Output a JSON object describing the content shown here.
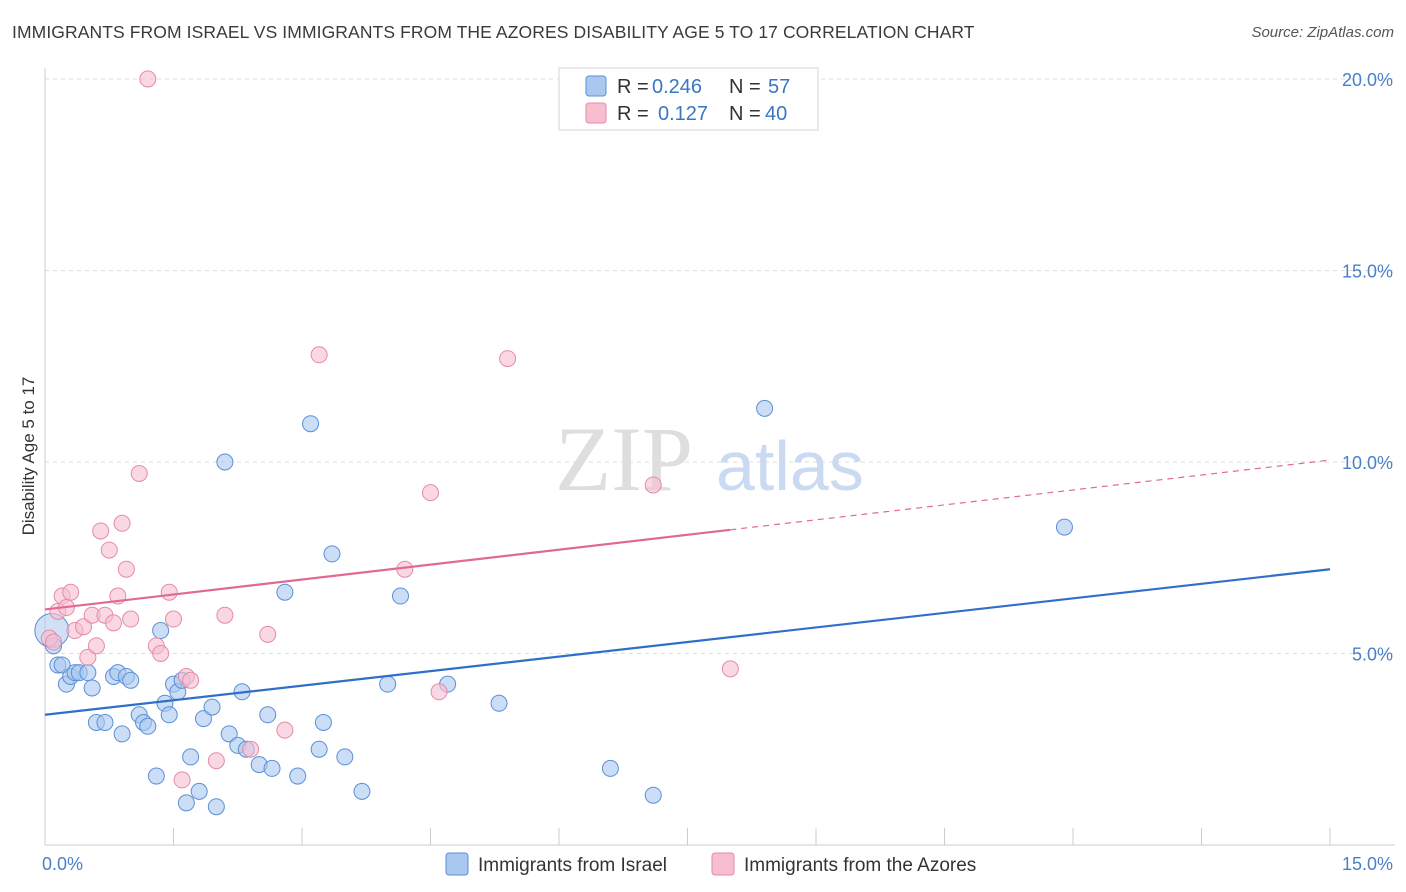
{
  "title": "IMMIGRANTS FROM ISRAEL VS IMMIGRANTS FROM THE AZORES DISABILITY AGE 5 TO 17 CORRELATION CHART",
  "source": "Source: ZipAtlas.com",
  "watermark": {
    "zip": "ZIP",
    "atlas": "atlas"
  },
  "legend": {
    "r_label": "R =",
    "n_label": "N =",
    "rows": [
      {
        "r": "0.246",
        "n": "57"
      },
      {
        "r": "0.127",
        "n": "40"
      }
    ]
  },
  "colors": {
    "israel_fill": "#a9c8f0",
    "israel_stroke": "#5b8fd6",
    "israel_line": "#2f6fc9",
    "azores_fill": "#f7bed0",
    "azores_stroke": "#e58aa8",
    "azores_line": "#e06a93"
  },
  "chart_data": {
    "type": "scatter",
    "title": "IMMIGRANTS FROM ISRAEL VS IMMIGRANTS FROM THE AZORES DISABILITY AGE 5 TO 17 CORRELATION CHART",
    "xlabel": "",
    "ylabel": "Disability Age 5 to 17",
    "xlim": [
      0,
      15
    ],
    "ylim": [
      0,
      20
    ],
    "x_tick_labels": [
      "0.0%",
      "15.0%"
    ],
    "y_ticks": [
      5,
      10,
      15,
      20
    ],
    "y_tick_labels": [
      "5.0%",
      "10.0%",
      "15.0%",
      "20.0%"
    ],
    "grid": true,
    "series": [
      {
        "name": "Immigrants from Israel",
        "r": 0.246,
        "n": 57,
        "trend": {
          "x0": 0,
          "y0": 3.4,
          "x1": 15,
          "y1": 7.2,
          "dashed_from": null
        },
        "points": [
          [
            0.08,
            5.6
          ],
          [
            0.1,
            5.2
          ],
          [
            0.15,
            4.7
          ],
          [
            0.2,
            4.7
          ],
          [
            0.25,
            4.2
          ],
          [
            0.3,
            4.4
          ],
          [
            0.35,
            4.5
          ],
          [
            0.4,
            4.5
          ],
          [
            0.5,
            4.5
          ],
          [
            0.55,
            4.1
          ],
          [
            0.6,
            3.2
          ],
          [
            0.7,
            3.2
          ],
          [
            0.8,
            4.4
          ],
          [
            0.85,
            4.5
          ],
          [
            0.9,
            2.9
          ],
          [
            0.95,
            4.4
          ],
          [
            1.0,
            4.3
          ],
          [
            1.1,
            3.4
          ],
          [
            1.15,
            3.2
          ],
          [
            1.2,
            3.1
          ],
          [
            1.3,
            1.8
          ],
          [
            1.35,
            5.6
          ],
          [
            1.4,
            3.7
          ],
          [
            1.45,
            3.4
          ],
          [
            1.5,
            4.2
          ],
          [
            1.55,
            4.0
          ],
          [
            1.6,
            4.3
          ],
          [
            1.65,
            1.1
          ],
          [
            1.7,
            2.3
          ],
          [
            1.8,
            1.4
          ],
          [
            1.85,
            3.3
          ],
          [
            1.95,
            3.6
          ],
          [
            2.0,
            1.0
          ],
          [
            2.1,
            10.0
          ],
          [
            2.15,
            2.9
          ],
          [
            2.25,
            2.6
          ],
          [
            2.3,
            4.0
          ],
          [
            2.35,
            2.5
          ],
          [
            2.5,
            2.1
          ],
          [
            2.6,
            3.4
          ],
          [
            2.65,
            2.0
          ],
          [
            2.8,
            6.6
          ],
          [
            2.95,
            1.8
          ],
          [
            3.1,
            11.0
          ],
          [
            3.2,
            2.5
          ],
          [
            3.25,
            3.2
          ],
          [
            3.35,
            7.6
          ],
          [
            3.5,
            2.3
          ],
          [
            3.7,
            1.4
          ],
          [
            4.0,
            4.2
          ],
          [
            4.15,
            6.5
          ],
          [
            4.7,
            4.2
          ],
          [
            5.3,
            3.7
          ],
          [
            6.6,
            2.0
          ],
          [
            7.1,
            1.3
          ],
          [
            8.4,
            11.4
          ],
          [
            11.9,
            8.3
          ]
        ]
      },
      {
        "name": "Immigrants from the Azores",
        "r": 0.127,
        "n": 40,
        "trend": {
          "x0": 0,
          "y0": 6.15,
          "x1": 15,
          "y1": 10.05,
          "dashed_from": 8.0
        },
        "points": [
          [
            0.05,
            5.4
          ],
          [
            0.1,
            5.3
          ],
          [
            0.15,
            6.1
          ],
          [
            0.2,
            6.5
          ],
          [
            0.25,
            6.2
          ],
          [
            0.3,
            6.6
          ],
          [
            0.35,
            5.6
          ],
          [
            0.45,
            5.7
          ],
          [
            0.5,
            4.9
          ],
          [
            0.55,
            6.0
          ],
          [
            0.6,
            5.2
          ],
          [
            0.65,
            8.2
          ],
          [
            0.7,
            6.0
          ],
          [
            0.75,
            7.7
          ],
          [
            0.8,
            5.8
          ],
          [
            0.85,
            6.5
          ],
          [
            0.9,
            8.4
          ],
          [
            0.95,
            7.2
          ],
          [
            1.0,
            5.9
          ],
          [
            1.1,
            9.7
          ],
          [
            1.2,
            20.0
          ],
          [
            1.3,
            5.2
          ],
          [
            1.35,
            5.0
          ],
          [
            1.45,
            6.6
          ],
          [
            1.5,
            5.9
          ],
          [
            1.6,
            1.7
          ],
          [
            1.65,
            4.4
          ],
          [
            1.7,
            4.3
          ],
          [
            2.0,
            2.2
          ],
          [
            2.1,
            6.0
          ],
          [
            2.4,
            2.5
          ],
          [
            2.6,
            5.5
          ],
          [
            2.8,
            3.0
          ],
          [
            3.2,
            12.8
          ],
          [
            4.2,
            7.2
          ],
          [
            4.5,
            9.2
          ],
          [
            4.6,
            4.0
          ],
          [
            5.4,
            12.7
          ],
          [
            7.1,
            9.4
          ],
          [
            8.0,
            4.6
          ]
        ]
      }
    ]
  },
  "bottom_legend": [
    "Immigrants from Israel",
    "Immigrants from the Azores"
  ]
}
